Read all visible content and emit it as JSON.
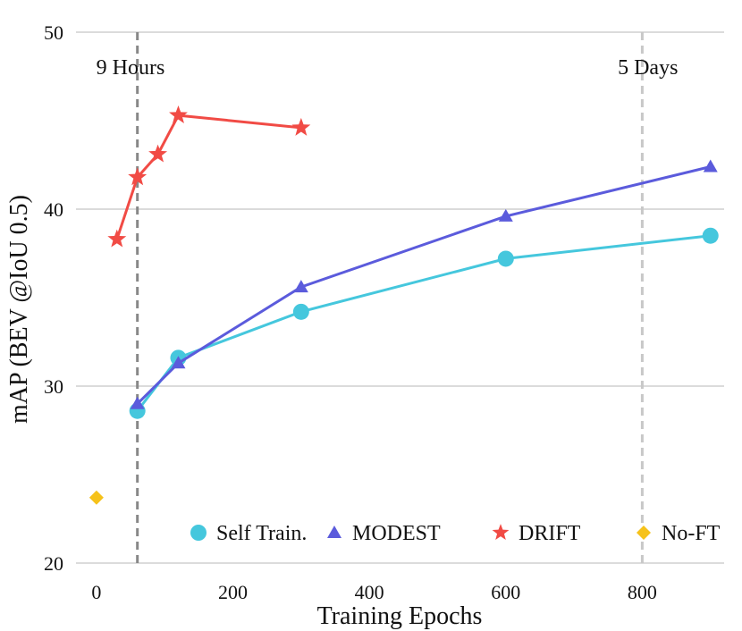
{
  "chart_data": {
    "type": "line",
    "title": "",
    "xlabel": "Training Epochs",
    "ylabel": "mAP (BEV @IoU 0.5)",
    "xlim": [
      -30,
      920
    ],
    "ylim": [
      20,
      50
    ],
    "xticks": [
      0,
      200,
      400,
      600,
      800
    ],
    "yticks": [
      20,
      30,
      40,
      50
    ],
    "grid": "horizontal",
    "legend_position": "bottom-right",
    "series": [
      {
        "name": "Self Train.",
        "color": "#45c7dd",
        "marker": "circle",
        "x": [
          60,
          120,
          300,
          600,
          900
        ],
        "y": [
          28.6,
          31.6,
          34.2,
          37.2,
          38.5
        ]
      },
      {
        "name": "MODEST",
        "color": "#5b5bdc",
        "marker": "triangle",
        "x": [
          60,
          120,
          300,
          600,
          900
        ],
        "y": [
          29.0,
          31.3,
          35.6,
          39.6,
          42.4
        ]
      },
      {
        "name": "DRIFT",
        "color": "#f14b45",
        "marker": "star",
        "x": [
          30,
          60,
          90,
          120,
          300
        ],
        "y": [
          38.3,
          41.8,
          43.1,
          45.3,
          44.6
        ]
      },
      {
        "name": "No-FT",
        "color": "#f6c21a",
        "marker": "diamond",
        "x": [
          0
        ],
        "y": [
          23.7
        ]
      }
    ],
    "reference_lines": [
      {
        "x": 60,
        "label": "9 Hours",
        "color": "#888888"
      },
      {
        "x": 800,
        "label": "5 Days",
        "color": "#c8c8c8"
      }
    ]
  }
}
